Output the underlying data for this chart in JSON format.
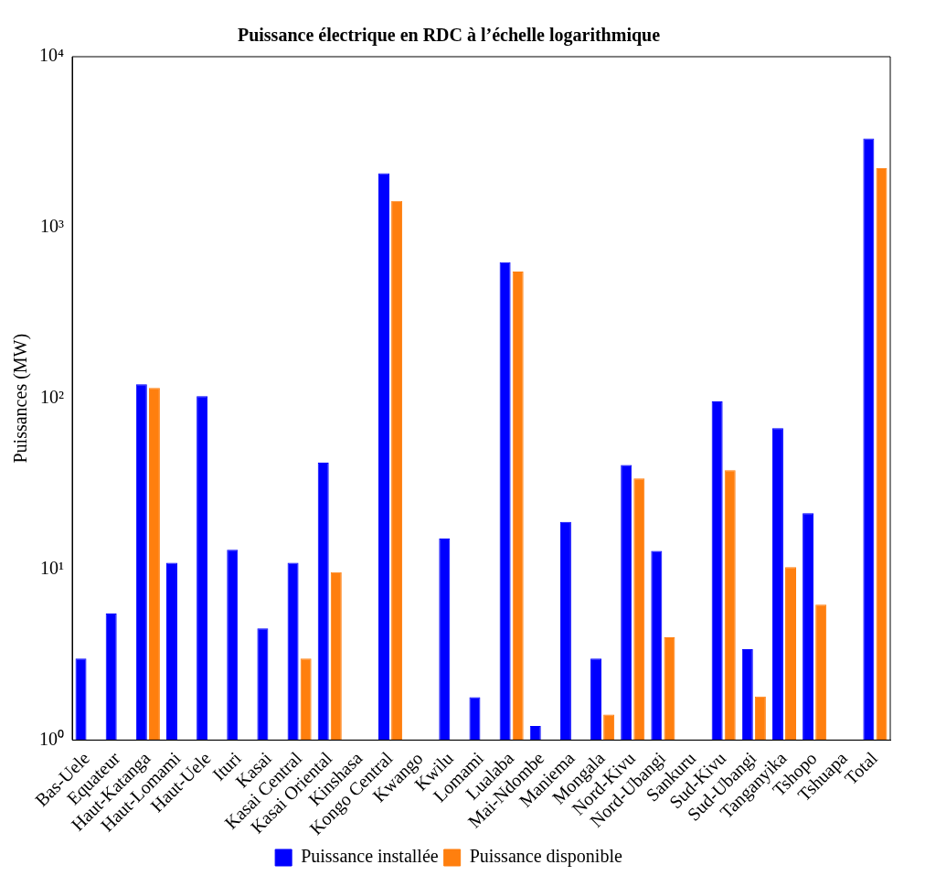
{
  "chart_data": {
    "type": "bar",
    "title": "Puissance électrique en RDC à l’échelle logarithmique",
    "ylabel": "Puissances (MW)",
    "log": "y",
    "ylim": [
      1,
      10000
    ],
    "yticks": [
      {
        "value": 1,
        "label": "10⁰"
      },
      {
        "value": 10,
        "label": "10¹"
      },
      {
        "value": 100,
        "label": "10²"
      },
      {
        "value": 1000,
        "label": "10³"
      },
      {
        "value": 10000,
        "label": "10⁴"
      }
    ],
    "grid": false,
    "legend": "bottom",
    "categories": [
      "Bas-Uele",
      "Equateur",
      "Haut-Katanga",
      "Haut-Lomami",
      "Haut-Uele",
      "Ituri",
      "Kasai",
      "Kasai Central",
      "Kasai Oriental",
      "Kinshasa",
      "Kongo Central",
      "Kwango",
      "Kwilu",
      "Lomami",
      "Lualaba",
      "Mai-Ndombe",
      "Maniema",
      "Mongala",
      "Nord-Kivu",
      "Nord-Ubangi",
      "Sankuru",
      "Sud-Kivu",
      "Sud-Ubangi",
      "Tanganyika",
      "Tshopo",
      "Tshuapa",
      "Total"
    ],
    "series": [
      {
        "name": "Puissance installée",
        "color": "#0000ff",
        "values": [
          3,
          5.5,
          121,
          10.9,
          103,
          13,
          4.5,
          10.9,
          42,
          null,
          2076,
          null,
          15.1,
          1.78,
          626,
          1.21,
          18.9,
          3,
          40.8,
          12.8,
          null,
          96,
          3.4,
          67,
          21.3,
          null,
          3320
        ]
      },
      {
        "name": "Puissance disponible",
        "color": "#ff7f0e",
        "values": [
          null,
          null,
          115,
          null,
          null,
          null,
          null,
          3,
          9.6,
          null,
          1431,
          null,
          null,
          null,
          553,
          null,
          null,
          1.41,
          34,
          4,
          null,
          38,
          1.8,
          10.3,
          6.2,
          null,
          2224
        ]
      }
    ]
  }
}
